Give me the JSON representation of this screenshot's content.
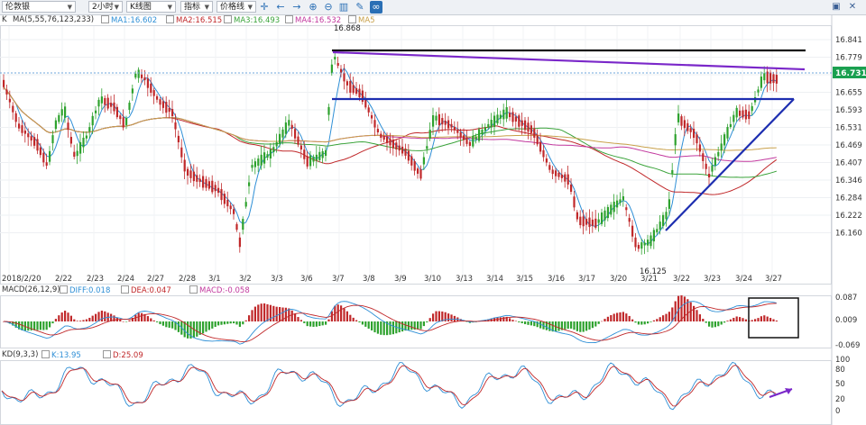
{
  "toolbar": {
    "instrument": "伦敦银",
    "period": "2小时",
    "chart_type": "K线图",
    "indicator": "指标",
    "price_line": "价格线",
    "tools": [
      "crosshair-icon",
      "arrow-left-icon",
      "arrow-right-icon",
      "zoom-in-icon",
      "zoom-out-icon",
      "chart-icon",
      "pencil-icon",
      "link-icon"
    ],
    "window": [
      "restore-icon",
      "close-icon"
    ]
  },
  "main_legend": {
    "k": "K",
    "ma": "MA(5,55,76,123,233)",
    "ma1": "MA1:16.602",
    "ma2": "MA2:16.515",
    "ma3": "MA3:16.493",
    "ma4": "MA4:16.532",
    "ma5": "MA5"
  },
  "macd_legend": {
    "title": "MACD(26,12,9)",
    "diff": "DIFF:0.018",
    "dea": "DEA:0.047",
    "macd": "MACD:-0.058"
  },
  "kd_legend": {
    "title": "KD(9,3,3)",
    "k": "K:13.95",
    "d": "D:25.09"
  },
  "colors": {
    "up": "#2ea22e",
    "down": "#c0282a",
    "ma1": "#2e8fd6",
    "ma2": "#c0282a",
    "ma3": "#3aa33a",
    "ma4": "#c2389e",
    "ma5": "#c8a04a",
    "price_tag": "#1aa050"
  },
  "chart_data": [
    {
      "type": "candlestick",
      "x_labels": [
        "2018/2/20",
        "2/22",
        "2/23",
        "2/24",
        "2/27",
        "2/28",
        "3/1",
        "3/2",
        "3/3",
        "3/6",
        "3/7",
        "3/8",
        "3/9",
        "3/10",
        "3/13",
        "3/14",
        "3/15",
        "3/16",
        "3/17",
        "3/20",
        "3/21",
        "3/22",
        "3/23",
        "3/24",
        "3/27"
      ],
      "y_ticks": [
        "16.841",
        "16.779",
        "16.717",
        "16.655",
        "16.593",
        "16.531",
        "16.469",
        "16.407",
        "16.346",
        "16.284",
        "16.222",
        "16.160"
      ],
      "ylim": [
        16.13,
        16.86
      ],
      "current_price": "16.731",
      "high_label": "16.868",
      "low_label": "16.125",
      "annotations": [
        "horizontal-resistance",
        "descending-trendline",
        "triangle-pattern"
      ]
    },
    {
      "type": "bar",
      "name": "MACD",
      "y_ticks": [
        "0.087",
        "0.009",
        "-0.069"
      ]
    },
    {
      "type": "line",
      "name": "KD",
      "y_ticks": [
        "100",
        "80",
        "50",
        "20",
        "0"
      ]
    }
  ]
}
